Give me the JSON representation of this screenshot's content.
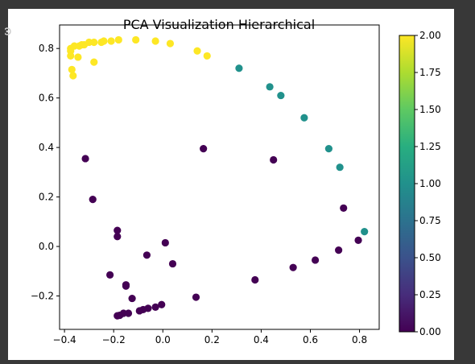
{
  "chart_data": {
    "type": "scatter",
    "title": "PCA Visualization Hierarchical",
    "xlabel": "",
    "ylabel": "",
    "xlim": [
      -0.42,
      0.88
    ],
    "ylim": [
      -0.335,
      0.895
    ],
    "xticks": [
      "-0.4",
      "-0.2",
      "0.0",
      "0.2",
      "0.4",
      "0.6",
      "0.8"
    ],
    "yticks": [
      "0.8",
      "0.6",
      "0.4",
      "0.2",
      "0.0",
      "-0.2"
    ],
    "colorbar": {
      "colormap": "viridis",
      "range": [
        0.0,
        2.0
      ],
      "ticks": [
        "2.00",
        "1.75",
        "1.50",
        "1.25",
        "1.00",
        "0.75",
        "0.50",
        "0.25",
        "0.00"
      ]
    },
    "grid": false,
    "series": [
      {
        "cluster": 2,
        "color": "#fde725",
        "points": [
          [
            -0.375,
            0.8
          ],
          [
            -0.375,
            0.79
          ],
          [
            -0.375,
            0.77
          ],
          [
            -0.36,
            0.81
          ],
          [
            -0.34,
            0.81
          ],
          [
            -0.33,
            0.815
          ],
          [
            -0.32,
            0.815
          ],
          [
            -0.3,
            0.825
          ],
          [
            -0.28,
            0.825
          ],
          [
            -0.25,
            0.825
          ],
          [
            -0.24,
            0.83
          ],
          [
            -0.21,
            0.83
          ],
          [
            -0.18,
            0.835
          ],
          [
            -0.11,
            0.835
          ],
          [
            -0.03,
            0.83
          ],
          [
            0.03,
            0.82
          ],
          [
            0.14,
            0.79
          ],
          [
            0.18,
            0.77
          ],
          [
            -0.345,
            0.765
          ],
          [
            -0.28,
            0.745
          ],
          [
            -0.37,
            0.715
          ],
          [
            -0.365,
            0.69
          ]
        ]
      },
      {
        "cluster": 1,
        "color": "#21918c",
        "points": [
          [
            0.31,
            0.72
          ],
          [
            0.435,
            0.645
          ],
          [
            0.48,
            0.61
          ],
          [
            0.575,
            0.52
          ],
          [
            0.675,
            0.395
          ],
          [
            0.72,
            0.32
          ],
          [
            0.82,
            0.06
          ]
        ]
      },
      {
        "cluster": 0,
        "color": "#440154",
        "points": [
          [
            -0.315,
            0.355
          ],
          [
            0.165,
            0.395
          ],
          [
            0.45,
            0.35
          ],
          [
            -0.285,
            0.19
          ],
          [
            0.735,
            0.155
          ],
          [
            -0.185,
            0.065
          ],
          [
            -0.185,
            0.04
          ],
          [
            0.01,
            0.015
          ],
          [
            0.795,
            0.025
          ],
          [
            0.715,
            -0.015
          ],
          [
            -0.065,
            -0.035
          ],
          [
            0.04,
            -0.07
          ],
          [
            0.62,
            -0.055
          ],
          [
            0.53,
            -0.085
          ],
          [
            -0.215,
            -0.115
          ],
          [
            0.375,
            -0.135
          ],
          [
            -0.15,
            -0.155
          ],
          [
            -0.15,
            -0.16
          ],
          [
            -0.125,
            -0.21
          ],
          [
            0.135,
            -0.205
          ],
          [
            -0.005,
            -0.235
          ],
          [
            -0.03,
            -0.245
          ],
          [
            -0.06,
            -0.25
          ],
          [
            -0.08,
            -0.255
          ],
          [
            -0.095,
            -0.26
          ],
          [
            -0.14,
            -0.27
          ],
          [
            -0.16,
            -0.27
          ],
          [
            -0.185,
            -0.28
          ],
          [
            -0.175,
            -0.278
          ]
        ]
      }
    ]
  }
}
